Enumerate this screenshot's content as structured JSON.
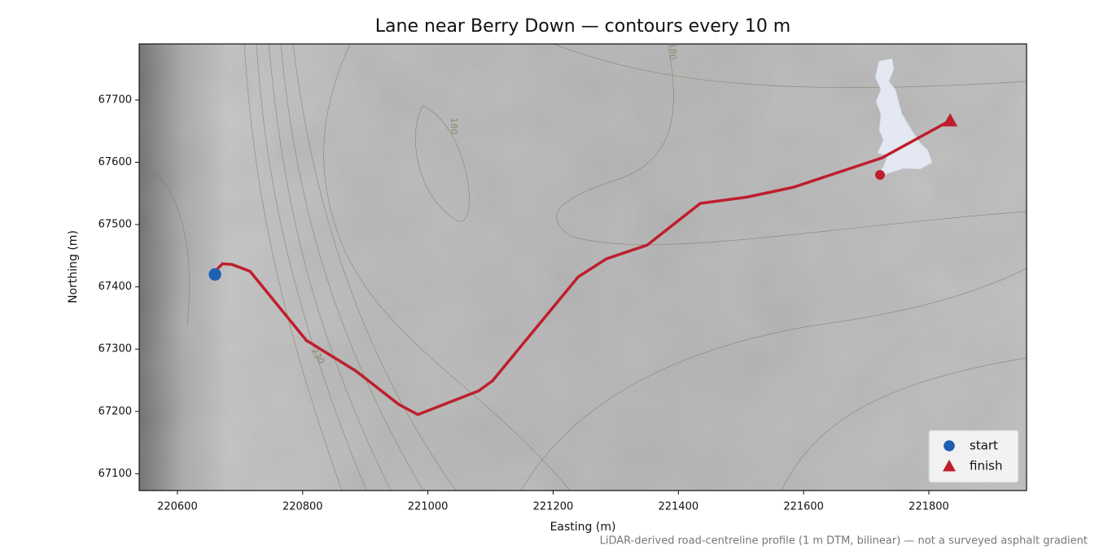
{
  "chart_data": {
    "type": "line",
    "title": "Lane near Berry Down — contours every 10 m",
    "x_label": "Easting (m)",
    "y_label": "Northing (m)",
    "footnote": "LiDAR-derived road-centreline profile (1 m DTM, bilinear) — not a surveyed asphalt gradient",
    "xlim": [
      220539,
      221956
    ],
    "ylim": [
      67073,
      67790
    ],
    "xticks": [
      220600,
      220800,
      221000,
      221200,
      221400,
      221600,
      221800
    ],
    "yticks": [
      67100,
      67200,
      67300,
      67400,
      67500,
      67600,
      67700
    ],
    "route": {
      "color": "#bf1e2d",
      "x": [
        220664,
        220672,
        220687,
        220716,
        220806,
        220885,
        220954,
        220984,
        221081,
        221103,
        221240,
        221285,
        221350,
        221435,
        221509,
        221584,
        221725,
        221834
      ],
      "y": [
        67429,
        67437,
        67436,
        67425,
        67314,
        67265,
        67211,
        67195,
        67233,
        67249,
        67416,
        67445,
        67467,
        67534,
        67544,
        67560,
        67607,
        67667
      ]
    },
    "markers": [
      {
        "name": "start",
        "marker": "circle",
        "color": "#1f5fb0",
        "x": 220660,
        "y": 67420
      },
      {
        "name": "finish",
        "marker": "triangle",
        "color": "#bf1e2d",
        "x": 221834,
        "y": 67667
      }
    ],
    "contour_labels": [
      "180",
      "180",
      "230"
    ],
    "legend": "lower right"
  }
}
